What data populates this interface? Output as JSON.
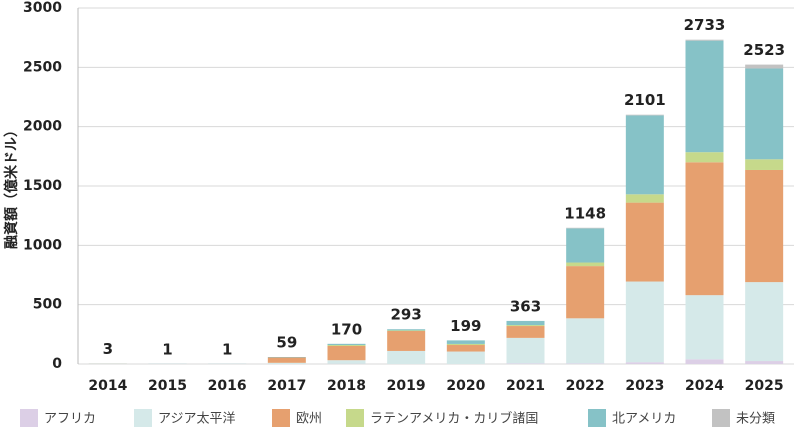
{
  "chart_data": {
    "type": "stacked-bar",
    "y_label": "融資額（億米ドル）",
    "categories": [
      "2014",
      "2015",
      "2016",
      "2017",
      "2018",
      "2019",
      "2020",
      "2021",
      "2022",
      "2023",
      "2024",
      "2025"
    ],
    "series": [
      {
        "name": "アフリカ",
        "color": "#dccfe6",
        "values": [
          0,
          0,
          0,
          0,
          2,
          0,
          0,
          5,
          5,
          15,
          40,
          25
        ]
      },
      {
        "name": "アジア太平洋",
        "color": "#d5e9e9",
        "values": [
          1,
          0,
          0,
          10,
          30,
          110,
          105,
          215,
          380,
          680,
          540,
          665
        ]
      },
      {
        "name": "欧州",
        "color": "#e6a06f",
        "values": [
          1,
          0,
          0,
          45,
          120,
          168,
          55,
          100,
          440,
          665,
          1120,
          945
        ]
      },
      {
        "name": "ラテンアメリカ・カリブ諸国",
        "color": "#c6d98b",
        "values": [
          0,
          0,
          0,
          0,
          8,
          5,
          9,
          8,
          30,
          70,
          85,
          90
        ]
      },
      {
        "name": "北アメリカ",
        "color": "#86c2c7",
        "values": [
          1,
          1,
          1,
          4,
          10,
          10,
          30,
          35,
          288,
          665,
          940,
          765
        ]
      },
      {
        "name": "未分類",
        "color": "#c2c2c2",
        "values": [
          0,
          0,
          0,
          0,
          0,
          0,
          0,
          0,
          5,
          6,
          8,
          33
        ]
      }
    ],
    "totals": [
      3,
      1,
      1,
      59,
      170,
      293,
      199,
      363,
      1148,
      2101,
      2733,
      2523
    ],
    "ylim": [
      0,
      3000
    ],
    "yticks": [
      0,
      500,
      1000,
      1500,
      2000,
      2500,
      3000
    ],
    "grid": true
  }
}
